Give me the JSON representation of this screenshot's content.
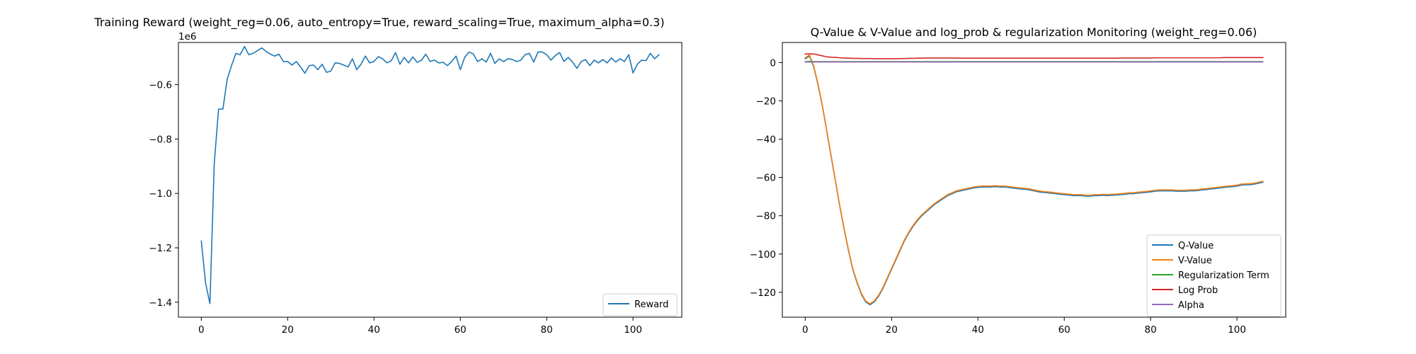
{
  "figure": {
    "left_title": "Training Reward (weight_reg=0.06, auto_entropy=True, reward_scaling=True, maximum_alpha=0.3)",
    "right_title": "Q-Value & V-Value and log_prob & regularization Monitoring (weight_reg=0.06)",
    "left_offset_text": "1e6"
  },
  "chart_data": [
    {
      "type": "line",
      "title": "Training Reward (weight_reg=0.06, auto_entropy=True, reward_scaling=True, maximum_alpha=0.3)",
      "xlabel": "",
      "ylabel": "",
      "xlim": [
        -5.3,
        111.3
      ],
      "ylim": [
        -1.455,
        -0.445
      ],
      "y_scale_note": "1e6",
      "xticks": [
        0,
        20,
        40,
        60,
        80,
        100
      ],
      "yticks": [
        -1.4,
        -1.2,
        -1.0,
        -0.8,
        -0.6
      ],
      "ytick_labels": [
        "−1.4",
        "−1.2",
        "−1.0",
        "−0.8",
        "−0.6"
      ],
      "legend_position": "lower-right",
      "grid": false,
      "series": [
        {
          "name": "Reward",
          "color": "#1f77b4",
          "x": [
            0,
            1,
            2,
            3,
            4,
            5,
            6,
            7,
            8,
            9,
            10,
            11,
            12,
            13,
            14,
            15,
            16,
            17,
            18,
            19,
            20,
            21,
            22,
            23,
            24,
            25,
            26,
            27,
            28,
            29,
            30,
            31,
            32,
            33,
            34,
            35,
            36,
            37,
            38,
            39,
            40,
            41,
            42,
            43,
            44,
            45,
            46,
            47,
            48,
            49,
            50,
            51,
            52,
            53,
            54,
            55,
            56,
            57,
            58,
            59,
            60,
            61,
            62,
            63,
            64,
            65,
            66,
            67,
            68,
            69,
            70,
            71,
            72,
            73,
            74,
            75,
            76,
            77,
            78,
            79,
            80,
            81,
            82,
            83,
            84,
            85,
            86,
            87,
            88,
            89,
            90,
            91,
            92,
            93,
            94,
            95,
            96,
            97,
            98,
            99,
            100,
            101,
            102,
            103,
            104,
            105,
            106
          ],
          "values": [
            -1.175,
            -1.33,
            -1.405,
            -0.89,
            -0.69,
            -0.69,
            -0.58,
            -0.53,
            -0.485,
            -0.49,
            -0.46,
            -0.49,
            -0.485,
            -0.475,
            -0.465,
            -0.478,
            -0.488,
            -0.495,
            -0.488,
            -0.515,
            -0.515,
            -0.528,
            -0.515,
            -0.535,
            -0.558,
            -0.53,
            -0.528,
            -0.545,
            -0.525,
            -0.555,
            -0.55,
            -0.52,
            -0.522,
            -0.528,
            -0.535,
            -0.505,
            -0.545,
            -0.525,
            -0.495,
            -0.52,
            -0.515,
            -0.497,
            -0.505,
            -0.52,
            -0.512,
            -0.482,
            -0.525,
            -0.5,
            -0.52,
            -0.498,
            -0.518,
            -0.51,
            -0.488,
            -0.515,
            -0.51,
            -0.52,
            -0.518,
            -0.53,
            -0.515,
            -0.495,
            -0.545,
            -0.5,
            -0.48,
            -0.487,
            -0.515,
            -0.505,
            -0.517,
            -0.485,
            -0.522,
            -0.505,
            -0.515,
            -0.505,
            -0.507,
            -0.515,
            -0.51,
            -0.49,
            -0.485,
            -0.517,
            -0.48,
            -0.48,
            -0.49,
            -0.51,
            -0.493,
            -0.482,
            -0.515,
            -0.5,
            -0.517,
            -0.54,
            -0.515,
            -0.508,
            -0.53,
            -0.51,
            -0.52,
            -0.508,
            -0.52,
            -0.502,
            -0.517,
            -0.505,
            -0.515,
            -0.49,
            -0.557,
            -0.525,
            -0.51,
            -0.512,
            -0.485,
            -0.505,
            -0.49
          ]
        }
      ]
    },
    {
      "type": "line",
      "title": "Q-Value & V-Value and log_prob & regularization Monitoring (weight_reg=0.06)",
      "xlabel": "",
      "ylabel": "",
      "xlim": [
        -5.3,
        111.3
      ],
      "ylim": [
        -133,
        10.5
      ],
      "xticks": [
        0,
        20,
        40,
        60,
        80,
        100
      ],
      "yticks": [
        -120,
        -100,
        -80,
        -60,
        -40,
        -20,
        0
      ],
      "ytick_labels": [
        "−120",
        "−100",
        "−80",
        "−60",
        "−40",
        "−20",
        "0"
      ],
      "legend_position": "lower-right",
      "grid": false,
      "x": [
        0,
        1,
        2,
        3,
        4,
        5,
        6,
        7,
        8,
        9,
        10,
        11,
        12,
        13,
        14,
        15,
        16,
        17,
        18,
        19,
        20,
        21,
        22,
        23,
        24,
        25,
        26,
        27,
        28,
        29,
        30,
        31,
        32,
        33,
        34,
        35,
        36,
        37,
        38,
        39,
        40,
        41,
        42,
        43,
        44,
        45,
        46,
        47,
        48,
        49,
        50,
        51,
        52,
        53,
        54,
        55,
        56,
        57,
        58,
        59,
        60,
        61,
        62,
        63,
        64,
        65,
        66,
        67,
        68,
        69,
        70,
        71,
        72,
        73,
        74,
        75,
        76,
        77,
        78,
        79,
        80,
        81,
        82,
        83,
        84,
        85,
        86,
        87,
        88,
        89,
        90,
        91,
        92,
        93,
        94,
        95,
        96,
        97,
        98,
        99,
        100,
        101,
        102,
        103,
        104,
        105,
        106
      ],
      "series": [
        {
          "name": "Q-Value",
          "color": "#1f77b4",
          "values": [
            2,
            3.5,
            -2.5,
            -12,
            -23,
            -36,
            -49,
            -62,
            -75,
            -87,
            -98,
            -108,
            -115,
            -121,
            -125,
            -126.5,
            -125,
            -122,
            -118,
            -113,
            -108,
            -103,
            -98,
            -93,
            -89,
            -85.5,
            -82.5,
            -80,
            -78,
            -76,
            -74,
            -72.5,
            -71,
            -69.5,
            -68.5,
            -67.5,
            -67,
            -66.5,
            -66,
            -65.5,
            -65.2,
            -65,
            -65,
            -65,
            -64.8,
            -65,
            -65,
            -65.2,
            -65.5,
            -65.8,
            -66,
            -66.2,
            -66.5,
            -67,
            -67.5,
            -67.8,
            -68,
            -68.2,
            -68.5,
            -68.8,
            -69,
            -69.2,
            -69.5,
            -69.5,
            -69.5,
            -69.8,
            -69.8,
            -69.5,
            -69.5,
            -69.3,
            -69.5,
            -69.3,
            -69.2,
            -69,
            -68.8,
            -68.5,
            -68.5,
            -68.2,
            -68,
            -67.8,
            -67.5,
            -67.2,
            -67,
            -67,
            -67,
            -67,
            -67.2,
            -67.2,
            -67.2,
            -67,
            -67,
            -66.8,
            -66.5,
            -66.3,
            -66,
            -65.8,
            -65.5,
            -65.2,
            -65,
            -64.8,
            -64.5,
            -64,
            -63.8,
            -63.8,
            -63.5,
            -63,
            -62.5
          ]
        },
        {
          "name": "V-Value",
          "color": "#ff7f0e",
          "values": [
            2.5,
            4,
            -2,
            -11.5,
            -22.5,
            -35.5,
            -48.5,
            -61.5,
            -74.5,
            -86.5,
            -97.5,
            -107.5,
            -114.5,
            -120.5,
            -124.5,
            -126,
            -124.5,
            -121.5,
            -117.5,
            -112.5,
            -107.5,
            -102.5,
            -97.5,
            -92.5,
            -88.5,
            -85,
            -82,
            -79.5,
            -77.5,
            -75.5,
            -73.5,
            -72,
            -70.5,
            -69,
            -68,
            -67,
            -66.5,
            -66,
            -65.5,
            -65,
            -64.7,
            -64.5,
            -64.5,
            -64.5,
            -64.3,
            -64.5,
            -64.5,
            -64.7,
            -65,
            -65.3,
            -65.5,
            -65.7,
            -66,
            -66.5,
            -67,
            -67.3,
            -67.5,
            -67.7,
            -68,
            -68.3,
            -68.5,
            -68.7,
            -69,
            -69,
            -69,
            -69.3,
            -69.3,
            -69,
            -69,
            -68.8,
            -69,
            -68.8,
            -68.7,
            -68.5,
            -68.3,
            -68,
            -68,
            -67.7,
            -67.5,
            -67.3,
            -67,
            -66.7,
            -66.5,
            -66.5,
            -66.5,
            -66.5,
            -66.7,
            -66.7,
            -66.7,
            -66.5,
            -66.5,
            -66.3,
            -66,
            -65.8,
            -65.5,
            -65.3,
            -65,
            -64.7,
            -64.5,
            -64.3,
            -64,
            -63.5,
            -63.3,
            -63.3,
            -63,
            -62.5,
            -62
          ]
        },
        {
          "name": "Regularization Term",
          "color": "#2ca02c",
          "values": [
            0.5,
            0.6,
            0.5,
            0.5,
            0.5,
            0.5,
            0.5,
            0.5,
            0.5,
            0.5,
            0.5,
            0.5,
            0.5,
            0.5,
            0.5,
            0.5,
            0.5,
            0.5,
            0.5,
            0.5,
            0.5,
            0.5,
            0.5,
            0.5,
            0.5,
            0.5,
            0.5,
            0.5,
            0.5,
            0.5,
            0.5,
            0.5,
            0.5,
            0.5,
            0.5,
            0.5,
            0.5,
            0.5,
            0.5,
            0.5,
            0.5,
            0.5,
            0.5,
            0.5,
            0.5,
            0.5,
            0.5,
            0.5,
            0.5,
            0.5,
            0.5,
            0.5,
            0.5,
            0.5,
            0.5,
            0.5,
            0.5,
            0.5,
            0.5,
            0.5,
            0.5,
            0.5,
            0.5,
            0.5,
            0.5,
            0.5,
            0.5,
            0.5,
            0.5,
            0.5,
            0.5,
            0.5,
            0.5,
            0.5,
            0.5,
            0.5,
            0.5,
            0.5,
            0.5,
            0.5,
            0.5,
            0.5,
            0.5,
            0.5,
            0.5,
            0.5,
            0.5,
            0.5,
            0.5,
            0.5,
            0.5,
            0.5,
            0.5,
            0.5,
            0.5,
            0.5,
            0.5,
            0.5,
            0.5,
            0.5,
            0.5,
            0.5,
            0.5,
            0.5,
            0.5,
            0.5,
            0.5
          ]
        },
        {
          "name": "Log Prob",
          "color": "#d62728",
          "values": [
            4.5,
            4.5,
            4.5,
            4,
            3.5,
            3,
            2.8,
            2.7,
            2.5,
            2.4,
            2.3,
            2.2,
            2.2,
            2.1,
            2.1,
            2.1,
            2.0,
            2.0,
            2.0,
            2.0,
            2.0,
            2.0,
            2.1,
            2.1,
            2.2,
            2.2,
            2.3,
            2.3,
            2.4,
            2.4,
            2.4,
            2.4,
            2.4,
            2.4,
            2.4,
            2.4,
            2.3,
            2.3,
            2.3,
            2.3,
            2.3,
            2.3,
            2.3,
            2.3,
            2.3,
            2.3,
            2.3,
            2.3,
            2.3,
            2.3,
            2.3,
            2.3,
            2.3,
            2.3,
            2.3,
            2.3,
            2.3,
            2.3,
            2.3,
            2.3,
            2.3,
            2.3,
            2.3,
            2.3,
            2.3,
            2.3,
            2.3,
            2.3,
            2.3,
            2.3,
            2.3,
            2.3,
            2.3,
            2.4,
            2.4,
            2.4,
            2.4,
            2.4,
            2.4,
            2.4,
            2.4,
            2.5,
            2.5,
            2.5,
            2.5,
            2.5,
            2.5,
            2.5,
            2.5,
            2.5,
            2.5,
            2.5,
            2.5,
            2.5,
            2.5,
            2.5,
            2.5,
            2.6,
            2.6,
            2.6,
            2.6,
            2.6,
            2.6,
            2.6,
            2.6,
            2.6,
            2.6
          ]
        },
        {
          "name": "Alpha",
          "color": "#9467bd",
          "values": [
            0.3,
            0.3,
            0.3,
            0.3,
            0.3,
            0.3,
            0.3,
            0.3,
            0.3,
            0.3,
            0.3,
            0.3,
            0.3,
            0.3,
            0.3,
            0.3,
            0.3,
            0.3,
            0.3,
            0.3,
            0.3,
            0.3,
            0.3,
            0.3,
            0.3,
            0.3,
            0.3,
            0.3,
            0.3,
            0.3,
            0.3,
            0.3,
            0.3,
            0.3,
            0.3,
            0.3,
            0.3,
            0.3,
            0.3,
            0.3,
            0.3,
            0.3,
            0.3,
            0.3,
            0.3,
            0.3,
            0.3,
            0.3,
            0.3,
            0.3,
            0.3,
            0.3,
            0.3,
            0.3,
            0.3,
            0.3,
            0.3,
            0.3,
            0.3,
            0.3,
            0.3,
            0.3,
            0.3,
            0.3,
            0.3,
            0.3,
            0.3,
            0.3,
            0.3,
            0.3,
            0.3,
            0.3,
            0.3,
            0.3,
            0.3,
            0.3,
            0.3,
            0.3,
            0.3,
            0.3,
            0.3,
            0.3,
            0.3,
            0.3,
            0.3,
            0.3,
            0.3,
            0.3,
            0.3,
            0.3,
            0.3,
            0.3,
            0.3,
            0.3,
            0.3,
            0.3,
            0.3,
            0.3,
            0.3,
            0.3,
            0.3,
            0.3,
            0.3,
            0.3,
            0.3,
            0.3,
            0.3
          ]
        }
      ]
    }
  ]
}
